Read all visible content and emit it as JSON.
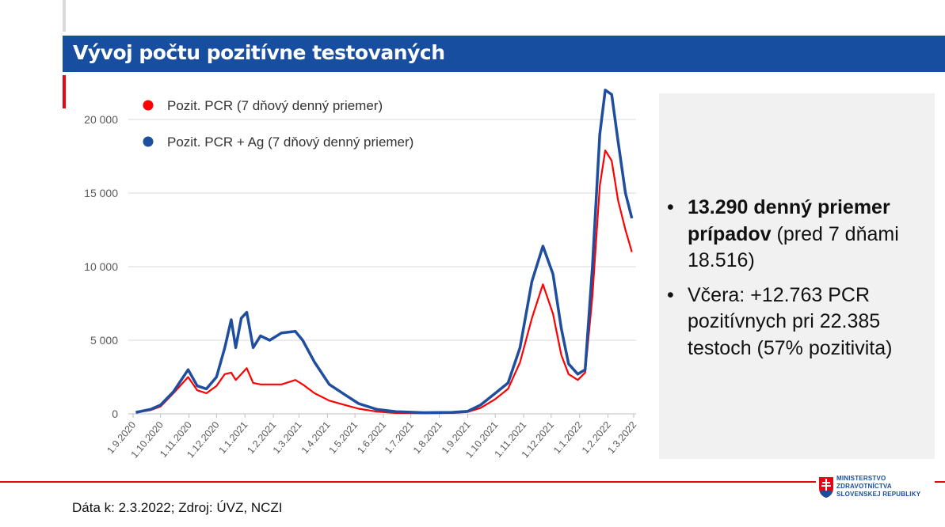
{
  "title": "Vývoj počtu pozitívne testovaných",
  "info": {
    "bullet1_bold": "13.290 denný priemer prípadov",
    "bullet1_rest": " (pred 7 dňami 18.516)",
    "bullet2": "Včera: +12.763 PCR pozitívnych pri 22.385 testoch (57% pozitivita)"
  },
  "footer": {
    "source": "Dáta k: 2.3.2022; Zdroj: ÚVZ, NCZI",
    "logo_lines": [
      "MINISTERSTVO",
      "ZDRAVOTNÍCTVA",
      "SLOVENSKEJ REPUBLIKY"
    ]
  },
  "colors": {
    "header": "#174ea0",
    "accent": "#e30613",
    "pcr": "#ff0000",
    "pcr_ag": "#1f4e9f"
  },
  "chart_data": {
    "type": "line",
    "ylim": [
      0,
      22000
    ],
    "yticks": [
      0,
      5000,
      10000,
      15000,
      20000
    ],
    "ytick_labels": [
      "0",
      "5 000",
      "10 000",
      "15 000",
      "20 000"
    ],
    "xlim": [
      "2020-09-01",
      "2022-03-01"
    ],
    "xtick_labels": [
      "1.9.2020",
      "1.10.2020",
      "1.11.2020",
      "1.12.2020",
      "1.1.2021",
      "1.2.2021",
      "1.3.2021",
      "1.4.2021",
      "1.5.2021",
      "1.6.2021",
      "1.7.2021",
      "1.8.2021",
      "1.9.2021",
      "1.10.2021",
      "1.11.2021",
      "1.12.2021",
      "1.1.2022",
      "1.2.2022",
      "1.3.2022"
    ],
    "grid": true,
    "legend": "top-left",
    "x": [
      "2020-09-04",
      "2020-09-20",
      "2020-10-01",
      "2020-10-15",
      "2020-10-31",
      "2020-11-10",
      "2020-11-20",
      "2020-12-01",
      "2020-12-10",
      "2020-12-17",
      "2020-12-22",
      "2020-12-28",
      "2021-01-03",
      "2021-01-10",
      "2021-01-18",
      "2021-01-28",
      "2021-02-10",
      "2021-02-25",
      "2021-03-05",
      "2021-03-18",
      "2021-04-03",
      "2021-04-20",
      "2021-05-05",
      "2021-05-25",
      "2021-06-15",
      "2021-07-15",
      "2021-08-15",
      "2021-09-01",
      "2021-09-15",
      "2021-10-01",
      "2021-10-15",
      "2021-10-28",
      "2021-11-10",
      "2021-11-22",
      "2021-12-03",
      "2021-12-12",
      "2021-12-20",
      "2021-12-30",
      "2022-01-07",
      "2022-01-15",
      "2022-01-23",
      "2022-01-29",
      "2022-02-05",
      "2022-02-12",
      "2022-02-20",
      "2022-02-27"
    ],
    "series": [
      {
        "name": "Pozit. PCR (7 dňový denný priemer)",
        "color": "#ff0000",
        "values": [
          100,
          250,
          500,
          1400,
          2500,
          1600,
          1400,
          1900,
          2700,
          2800,
          2300,
          2700,
          3100,
          2100,
          2000,
          2000,
          2000,
          2300,
          2000,
          1400,
          900,
          600,
          350,
          150,
          60,
          40,
          60,
          130,
          400,
          1000,
          1700,
          3500,
          6500,
          8800,
          6800,
          4000,
          2700,
          2300,
          2800,
          8000,
          15500,
          17900,
          17200,
          14500,
          12500,
          11000
        ]
      },
      {
        "name": "Pozit. PCR + Ag (7 dňový denný priemer)",
        "color": "#1f4e9f",
        "values": [
          100,
          300,
          600,
          1500,
          3000,
          1900,
          1700,
          2500,
          4500,
          6400,
          4500,
          6500,
          6900,
          4500,
          5300,
          5000,
          5500,
          5600,
          5000,
          3500,
          2000,
          1300,
          700,
          300,
          150,
          80,
          100,
          180,
          600,
          1400,
          2100,
          4500,
          9000,
          11400,
          9500,
          5800,
          3400,
          2700,
          3000,
          10000,
          19000,
          22000,
          21700,
          18500,
          15000,
          13290
        ]
      }
    ]
  }
}
